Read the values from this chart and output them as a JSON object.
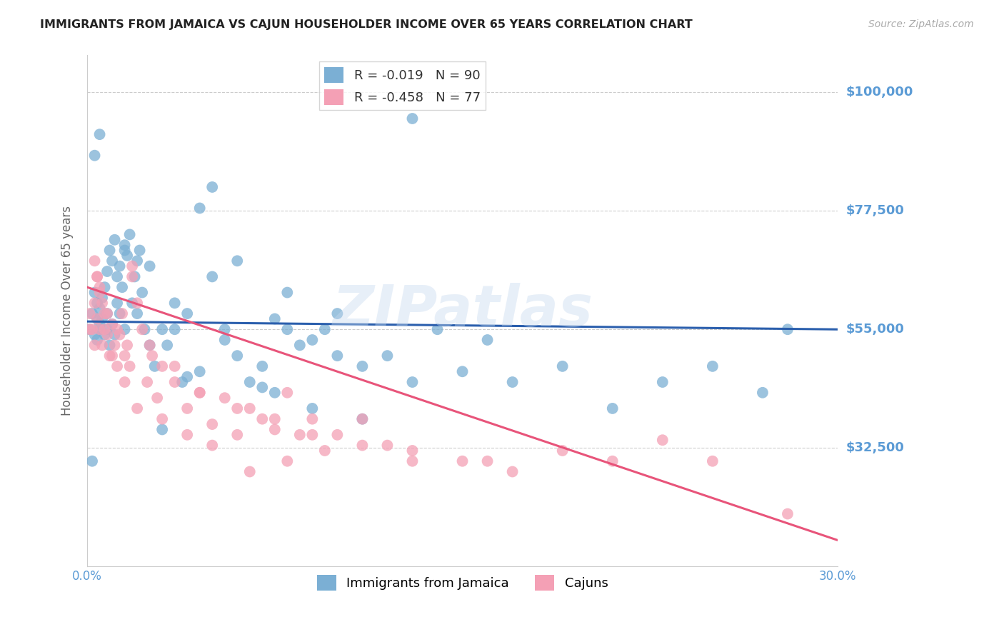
{
  "title": "IMMIGRANTS FROM JAMAICA VS CAJUN HOUSEHOLDER INCOME OVER 65 YEARS CORRELATION CHART",
  "source": "Source: ZipAtlas.com",
  "ylabel": "Householder Income Over 65 years",
  "xlim": [
    0.0,
    0.3
  ],
  "ylim": [
    10000,
    107000
  ],
  "yticks": [
    32500,
    55000,
    77500,
    100000
  ],
  "ytick_labels": [
    "$32,500",
    "$55,000",
    "$77,500",
    "$100,000"
  ],
  "xticks": [
    0.0,
    0.05,
    0.1,
    0.15,
    0.2,
    0.25,
    0.3
  ],
  "xtick_labels": [
    "0.0%",
    "",
    "",
    "",
    "",
    "",
    "30.0%"
  ],
  "series1_label": "Immigrants from Jamaica",
  "series2_label": "Cajuns",
  "series1_color": "#7bafd4",
  "series2_color": "#f4a0b5",
  "series1_line_color": "#2b5fad",
  "series2_line_color": "#e8547a",
  "background_color": "#ffffff",
  "axis_label_color": "#666666",
  "tick_label_color": "#5b9bd5",
  "grid_color": "#cccccc",
  "watermark": "ZIPatlas",
  "legend1_r": "R = -0.019",
  "legend1_n": "N = 90",
  "legend2_r": "R = -0.458",
  "legend2_n": "N = 77",
  "series1_x": [
    0.001,
    0.002,
    0.003,
    0.003,
    0.004,
    0.004,
    0.005,
    0.005,
    0.005,
    0.006,
    0.006,
    0.007,
    0.007,
    0.008,
    0.008,
    0.009,
    0.009,
    0.01,
    0.01,
    0.011,
    0.011,
    0.012,
    0.012,
    0.013,
    0.013,
    0.014,
    0.015,
    0.015,
    0.016,
    0.017,
    0.018,
    0.019,
    0.02,
    0.021,
    0.022,
    0.023,
    0.025,
    0.027,
    0.03,
    0.032,
    0.035,
    0.038,
    0.04,
    0.045,
    0.05,
    0.055,
    0.06,
    0.065,
    0.07,
    0.075,
    0.08,
    0.085,
    0.09,
    0.095,
    0.1,
    0.11,
    0.12,
    0.13,
    0.15,
    0.17,
    0.19,
    0.21,
    0.23,
    0.25,
    0.27,
    0.13,
    0.005,
    0.003,
    0.008,
    0.015,
    0.02,
    0.05,
    0.06,
    0.08,
    0.1,
    0.04,
    0.025,
    0.07,
    0.045,
    0.03,
    0.055,
    0.035,
    0.075,
    0.09,
    0.11,
    0.14,
    0.16,
    0.28,
    0.002,
    0.004
  ],
  "series1_y": [
    55000,
    58000,
    54000,
    62000,
    57000,
    60000,
    56000,
    59000,
    55000,
    61000,
    57000,
    63000,
    54000,
    66000,
    58000,
    70000,
    52000,
    68000,
    56000,
    72000,
    54000,
    65000,
    60000,
    67000,
    58000,
    63000,
    71000,
    55000,
    69000,
    73000,
    60000,
    65000,
    58000,
    70000,
    62000,
    55000,
    67000,
    48000,
    55000,
    52000,
    60000,
    45000,
    58000,
    78000,
    82000,
    55000,
    50000,
    45000,
    48000,
    43000,
    55000,
    52000,
    40000,
    55000,
    50000,
    38000,
    50000,
    45000,
    47000,
    45000,
    48000,
    40000,
    45000,
    48000,
    43000,
    95000,
    92000,
    88000,
    55000,
    70000,
    68000,
    65000,
    68000,
    62000,
    58000,
    46000,
    52000,
    44000,
    47000,
    36000,
    53000,
    55000,
    57000,
    53000,
    48000,
    55000,
    53000,
    55000,
    30000,
    53000
  ],
  "series2_x": [
    0.001,
    0.002,
    0.003,
    0.003,
    0.004,
    0.004,
    0.005,
    0.005,
    0.006,
    0.007,
    0.008,
    0.009,
    0.01,
    0.011,
    0.012,
    0.013,
    0.014,
    0.015,
    0.016,
    0.017,
    0.018,
    0.02,
    0.022,
    0.024,
    0.026,
    0.028,
    0.03,
    0.035,
    0.04,
    0.045,
    0.05,
    0.055,
    0.06,
    0.065,
    0.07,
    0.075,
    0.08,
    0.085,
    0.09,
    0.095,
    0.1,
    0.11,
    0.12,
    0.13,
    0.15,
    0.17,
    0.19,
    0.21,
    0.23,
    0.25,
    0.003,
    0.005,
    0.008,
    0.012,
    0.018,
    0.025,
    0.035,
    0.045,
    0.06,
    0.075,
    0.09,
    0.11,
    0.13,
    0.16,
    0.004,
    0.007,
    0.01,
    0.015,
    0.02,
    0.03,
    0.04,
    0.05,
    0.065,
    0.08,
    0.001,
    0.006,
    0.28
  ],
  "series2_y": [
    58000,
    55000,
    60000,
    52000,
    65000,
    57000,
    63000,
    55000,
    60000,
    58000,
    54000,
    50000,
    56000,
    52000,
    48000,
    54000,
    58000,
    50000,
    52000,
    48000,
    65000,
    60000,
    55000,
    45000,
    50000,
    42000,
    48000,
    45000,
    40000,
    43000,
    37000,
    42000,
    35000,
    40000,
    38000,
    36000,
    43000,
    35000,
    38000,
    32000,
    35000,
    38000,
    33000,
    32000,
    30000,
    28000,
    32000,
    30000,
    34000,
    30000,
    68000,
    62000,
    58000,
    55000,
    67000,
    52000,
    48000,
    43000,
    40000,
    38000,
    35000,
    33000,
    30000,
    30000,
    65000,
    55000,
    50000,
    45000,
    40000,
    38000,
    35000,
    33000,
    28000,
    30000,
    55000,
    52000,
    20000
  ],
  "series1_trendline_x": [
    0.0,
    0.3
  ],
  "series1_trendline_y": [
    56500,
    55000
  ],
  "series2_trendline_x": [
    0.0,
    0.3
  ],
  "series2_trendline_y": [
    63000,
    15000
  ]
}
